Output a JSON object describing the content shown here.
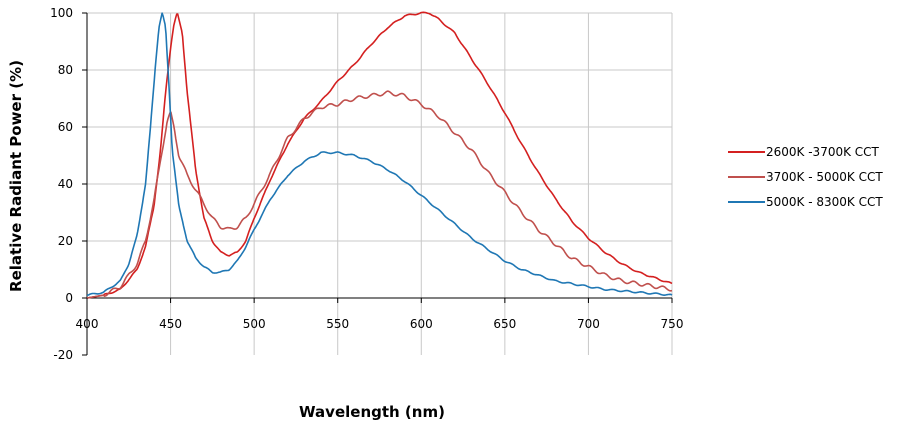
{
  "chart_data": {
    "type": "line",
    "title": "",
    "xlabel": "Wavelength (nm)",
    "ylabel": "Relative Radiant Power (%)",
    "xlim": [
      400,
      750
    ],
    "ylim": [
      -20,
      100
    ],
    "x_ticks": [
      400,
      450,
      500,
      550,
      600,
      650,
      700,
      750
    ],
    "y_ticks": [
      -20,
      0,
      20,
      40,
      60,
      80,
      100
    ],
    "grid": true,
    "legend_position": "right",
    "series": [
      {
        "name": "2600K -3700K CCT",
        "color": "#d42020",
        "x": [
          400,
          410,
          420,
          430,
          435,
          440,
          444,
          447,
          450,
          452,
          454,
          457,
          460,
          465,
          470,
          475,
          480,
          485,
          490,
          495,
          500,
          510,
          520,
          530,
          540,
          550,
          560,
          570,
          580,
          590,
          600,
          605,
          610,
          620,
          630,
          640,
          650,
          660,
          670,
          680,
          690,
          700,
          710,
          720,
          730,
          740,
          750
        ],
        "values": [
          0,
          1,
          3,
          10,
          18,
          32,
          52,
          72,
          88,
          96,
          100,
          93,
          72,
          45,
          28,
          20,
          16,
          15,
          16,
          20,
          28,
          42,
          54,
          63,
          69,
          76,
          82,
          89,
          95,
          99,
          100,
          100,
          98,
          93,
          84,
          75,
          65,
          54,
          44,
          35,
          27,
          21,
          16,
          12,
          9,
          7,
          5
        ]
      },
      {
        "name": "3700K - 5000K CCT",
        "color": "#c0504d",
        "x": [
          400,
          410,
          420,
          430,
          435,
          440,
          445,
          448,
          450,
          452,
          455,
          460,
          465,
          470,
          475,
          480,
          485,
          490,
          495,
          500,
          510,
          520,
          530,
          540,
          550,
          560,
          570,
          580,
          590,
          600,
          610,
          620,
          630,
          640,
          650,
          660,
          670,
          680,
          690,
          700,
          710,
          720,
          730,
          740,
          750
        ],
        "values": [
          0,
          1,
          4,
          12,
          20,
          34,
          52,
          62,
          65,
          60,
          50,
          43,
          38,
          33,
          28,
          25,
          24,
          25,
          28,
          33,
          44,
          56,
          63,
          67,
          68,
          70,
          71,
          72,
          71,
          68,
          64,
          58,
          52,
          44,
          37,
          30,
          24,
          19,
          14,
          11,
          8,
          6,
          5,
          4,
          3
        ]
      },
      {
        "name": "5000K - 8300K CCT",
        "color": "#1f77b4",
        "x": [
          400,
          410,
          420,
          425,
          430,
          435,
          438,
          441,
          443,
          445,
          447,
          449,
          451,
          455,
          460,
          465,
          470,
          475,
          480,
          485,
          490,
          495,
          500,
          510,
          520,
          530,
          540,
          550,
          560,
          570,
          580,
          590,
          600,
          610,
          620,
          630,
          640,
          650,
          660,
          670,
          680,
          690,
          700,
          710,
          720,
          730,
          740,
          750
        ],
        "values": [
          1,
          2,
          6,
          12,
          22,
          40,
          60,
          82,
          95,
          100,
          95,
          75,
          52,
          32,
          20,
          14,
          11,
          9,
          9,
          10,
          13,
          18,
          24,
          35,
          43,
          48,
          51,
          51,
          50,
          48,
          45,
          41,
          36,
          31,
          26,
          21,
          17,
          13,
          10,
          8,
          6,
          5,
          4,
          3,
          2.5,
          2,
          1.5,
          1
        ]
      }
    ]
  }
}
